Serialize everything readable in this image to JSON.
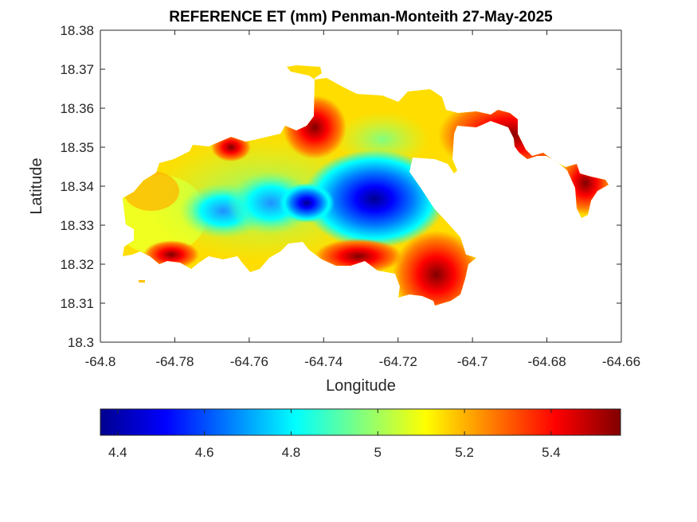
{
  "chart_data": {
    "type": "heatmap",
    "title": "REFERENCE ET (mm) Penman-Monteith 27-May-2025",
    "xlabel": "Longitude",
    "ylabel": "Latitude",
    "xlim": [
      -64.8,
      -64.66
    ],
    "ylim": [
      18.3,
      18.38
    ],
    "x_ticks": [
      "-64.8",
      "-64.78",
      "-64.76",
      "-64.74",
      "-64.72",
      "-64.7",
      "-64.68",
      "-64.66"
    ],
    "y_ticks": [
      "18.3",
      "18.31",
      "18.32",
      "18.33",
      "18.34",
      "18.35",
      "18.36",
      "18.37",
      "18.38"
    ],
    "colorbar": {
      "range": [
        4.36,
        5.56
      ],
      "ticks": [
        "4.4",
        "4.6",
        "4.8",
        "5",
        "5.2",
        "5.4"
      ],
      "colormap": "jet",
      "colors": [
        "#00008f",
        "#0000ff",
        "#00ffff",
        "#ffff00",
        "#ff0000",
        "#800000"
      ]
    },
    "grid": false,
    "features": [
      {
        "name": "et-minimum",
        "x": -64.722,
        "y": 18.3355,
        "value": 4.4
      },
      {
        "name": "et-low-west",
        "x": -64.746,
        "y": 18.3355,
        "value": 4.7
      },
      {
        "name": "et-high-southeast",
        "x": -64.71,
        "y": 18.312,
        "value": 5.55
      },
      {
        "name": "et-high-northwest",
        "x": -64.765,
        "y": 18.35,
        "value": 5.45
      },
      {
        "name": "et-high-east-spur",
        "x": -64.67,
        "y": 18.341,
        "value": 5.4
      }
    ]
  }
}
